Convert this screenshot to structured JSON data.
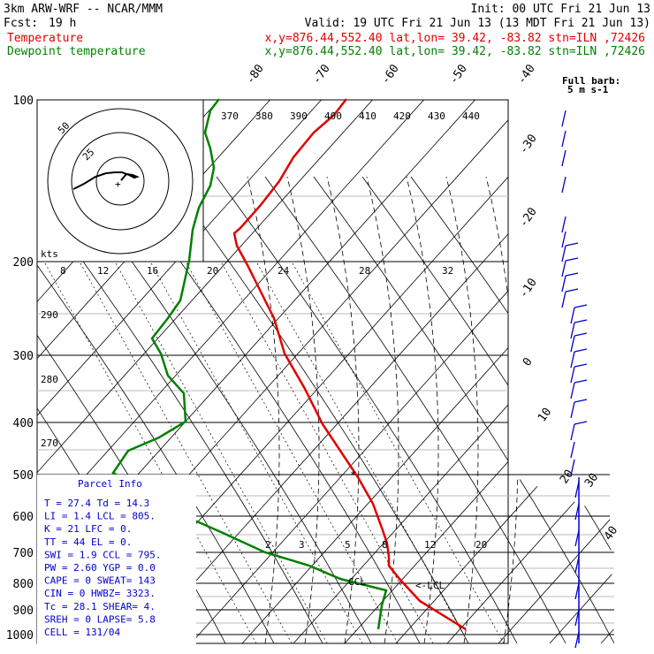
{
  "header": {
    "model": "3km ARW-WRF -- NCAR/MMM",
    "init": "Init: 00 UTC Fri 21 Jun 13",
    "fcst_label": "Fcst:",
    "fcst_value": "19 h",
    "valid": "Valid: 19 UTC Fri 21 Jun 13 (13 MDT Fri 21 Jun 13)",
    "temp_label": "Temperature",
    "temp_loc": "x,y=876.44,552.40   lat,lon= 39.42, -83.82  stn=ILN ,72426",
    "dew_label": "Dewpoint temperature",
    "dew_loc": "x,y=876.44,552.40   lat,lon= 39.42, -83.82  stn=ILN ,72426"
  },
  "colors": {
    "temperature": "#e00000",
    "dewpoint": "#008000",
    "info": "#0000cc",
    "grid": "#000000"
  },
  "barb_header": {
    "line1": "Full barb:",
    "line2": "5 m s-1"
  },
  "inset": {
    "unit": "kts",
    "ring_labels": [
      "25",
      "50"
    ],
    "hodograph": [
      [
        83,
        214
      ],
      [
        95,
        208
      ],
      [
        108,
        200
      ],
      [
        120,
        196
      ],
      [
        130,
        195
      ],
      [
        138,
        195
      ],
      [
        146,
        198
      ],
      [
        152,
        201
      ],
      [
        155,
        200
      ],
      [
        150,
        198
      ],
      [
        143,
        197
      ],
      [
        137,
        204
      ]
    ]
  },
  "chart_data": {
    "type": "skew-t",
    "pressure_levels": [
      100,
      200,
      300,
      400,
      500,
      600,
      700,
      800,
      900,
      1000
    ],
    "isotherm_labels": [
      -80,
      -70,
      -60,
      -50,
      -40,
      -30,
      -20,
      -10,
      0,
      10,
      20,
      30,
      40
    ],
    "theta_labels": [
      370,
      380,
      390,
      400,
      410,
      420,
      430,
      440
    ],
    "mixing_ratio_labels": [
      8,
      12,
      16,
      20,
      24,
      28,
      32
    ],
    "mixing_ratio_low_labels": [
      2,
      3,
      5,
      8,
      12,
      20
    ],
    "dry_adiabat_labels": [
      290,
      280,
      270
    ],
    "temperature": [
      [
        112,
        392
      ],
      [
        130,
        378
      ],
      [
        150,
        355
      ],
      [
        178,
        332
      ],
      [
        205,
        316
      ],
      [
        232,
        295
      ],
      [
        258,
        272
      ],
      [
        264,
        265
      ],
      [
        278,
        268
      ],
      [
        300,
        280
      ],
      [
        330,
        295
      ],
      [
        360,
        310
      ],
      [
        400,
        322
      ],
      [
        440,
        345
      ],
      [
        480,
        365
      ],
      [
        510,
        385
      ],
      [
        540,
        405
      ],
      [
        570,
        422
      ],
      [
        600,
        433
      ],
      [
        615,
        438
      ],
      [
        630,
        440
      ],
      [
        640,
        440
      ],
      [
        655,
        452
      ],
      [
        680,
        475
      ],
      [
        712,
        527
      ]
    ],
    "dewpoint": [
      [
        112,
        248
      ],
      [
        125,
        238
      ],
      [
        150,
        232
      ],
      [
        168,
        238
      ],
      [
        190,
        242
      ],
      [
        210,
        238
      ],
      [
        235,
        225
      ],
      [
        260,
        218
      ],
      [
        295,
        214
      ],
      [
        340,
        204
      ],
      [
        360,
        190
      ],
      [
        383,
        172
      ],
      [
        400,
        182
      ],
      [
        425,
        190
      ],
      [
        445,
        208
      ],
      [
        477,
        210
      ],
      [
        495,
        180
      ],
      [
        510,
        145
      ],
      [
        535,
        128
      ],
      [
        560,
        170
      ],
      [
        580,
        200
      ],
      [
        602,
        250
      ],
      [
        625,
        300
      ],
      [
        640,
        350
      ],
      [
        655,
        385
      ],
      [
        668,
        437
      ],
      [
        685,
        432
      ],
      [
        712,
        428
      ]
    ]
  },
  "annotations": {
    "lcl": "<-LCL",
    "ccl": "CCL",
    "mark": "*"
  },
  "parcel": {
    "title": "Parcel Info",
    "rows": [
      "T  =   27.4  Td =  14.3",
      "LI =    1.4  LCL =  805.",
      "K  =     21  LFC =    0.",
      "TT =     44  EL  =    0.",
      "SWI =   1.9  CCL =  795.",
      "PW =   2.60  YGP =   0.0",
      "CAPE =    0  SWEAT=   143",
      "CIN =     0  HWBZ= 3323.",
      "Tc =   28.1  SHEAR=    4.",
      "SREH =    0  LAPSE=   5.8",
      "CELL = 131/04"
    ]
  }
}
